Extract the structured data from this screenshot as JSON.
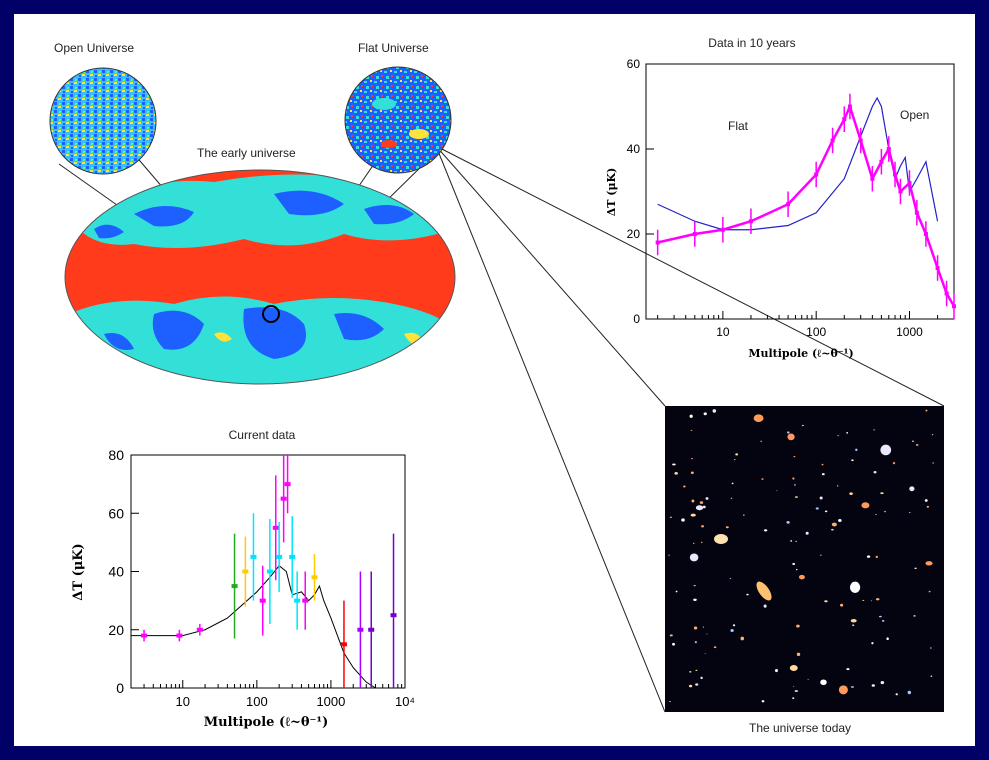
{
  "diagram": {
    "open_universe_label": "Open Universe",
    "flat_universe_label": "Flat Universe",
    "early_universe_label": "The early universe",
    "universe_today_label": "The universe today"
  },
  "colors": {
    "frame": "#000066",
    "map_red": "#ff3b1c",
    "map_cyan": "#33e0d8",
    "map_blue": "#1e60ff",
    "map_yellow": "#ffe23a",
    "magenta": "#ff00ff",
    "theory_blue": "#2222cc"
  },
  "chart_data": [
    {
      "type": "line",
      "title": "Data in 10 years",
      "xlabel": "Multipole (ℓ~θ⁻¹)",
      "ylabel": "ΔT (μK)",
      "x_scale": "log",
      "xlim": [
        1.5,
        3000
      ],
      "ylim": [
        0,
        60
      ],
      "xticks": [
        "10",
        "100",
        "1000"
      ],
      "yticks": [
        "0",
        "20",
        "40",
        "60"
      ],
      "annotations": [
        "Flat",
        "Open"
      ],
      "series": [
        {
          "name": "Flat",
          "x": [
            2,
            5,
            10,
            20,
            50,
            100,
            150,
            200,
            230,
            300,
            400,
            500,
            600,
            700,
            800,
            1000,
            1200,
            1500,
            2000,
            2500,
            3000
          ],
          "y": [
            18,
            20,
            21,
            23,
            27,
            34,
            42,
            47,
            50,
            42,
            33,
            37,
            40,
            34,
            30,
            32,
            25,
            20,
            12,
            6,
            3
          ]
        },
        {
          "name": "Open",
          "x": [
            2,
            5,
            10,
            20,
            50,
            100,
            200,
            300,
            400,
            450,
            500,
            600,
            700,
            800,
            900,
            1000,
            1200,
            1500,
            2000
          ],
          "y": [
            27,
            23,
            21,
            21,
            22,
            25,
            33,
            43,
            50,
            52,
            50,
            40,
            33,
            36,
            38,
            30,
            33,
            37,
            23
          ]
        }
      ]
    },
    {
      "type": "scatter",
      "title": "Current data",
      "xlabel": "Multipole (ℓ~θ⁻¹)",
      "ylabel": "ΔT (μK)",
      "x_scale": "log",
      "xlim": [
        2,
        10000
      ],
      "ylim": [
        0,
        80
      ],
      "xticks": [
        "10",
        "100",
        "1000",
        "10⁴"
      ],
      "yticks": [
        "0",
        "20",
        "40",
        "60",
        "80"
      ],
      "series": [
        {
          "name": "theory",
          "x": [
            2,
            5,
            10,
            20,
            40,
            60,
            100,
            150,
            200,
            250,
            300,
            400,
            500,
            600,
            700,
            800,
            1000,
            1500,
            2000,
            3000,
            4000
          ],
          "y": [
            18,
            18,
            18,
            20,
            24,
            28,
            33,
            38,
            42,
            40,
            32,
            33,
            30,
            32,
            35,
            30,
            24,
            12,
            7,
            2,
            0
          ]
        }
      ],
      "points": [
        {
          "x": 3,
          "y": 18,
          "err": 2,
          "color": "#ff00ff"
        },
        {
          "x": 9,
          "y": 18,
          "err": 2,
          "color": "#ff00ff"
        },
        {
          "x": 17,
          "y": 20,
          "err": 2,
          "color": "#ff00ff"
        },
        {
          "x": 50,
          "y": 35,
          "err": 18,
          "color": "#22aa22"
        },
        {
          "x": 70,
          "y": 40,
          "err": 12,
          "color": "#ffcc00"
        },
        {
          "x": 90,
          "y": 45,
          "err": 15,
          "color": "#00e5ff"
        },
        {
          "x": 120,
          "y": 30,
          "err": 12,
          "color": "#ff00ff"
        },
        {
          "x": 150,
          "y": 40,
          "err": 18,
          "color": "#00e5ff"
        },
        {
          "x": 180,
          "y": 55,
          "err": 18,
          "color": "#ff00ff"
        },
        {
          "x": 200,
          "y": 45,
          "err": 12,
          "color": "#00e5ff"
        },
        {
          "x": 230,
          "y": 65,
          "err": 15,
          "color": "#ff00ff"
        },
        {
          "x": 260,
          "y": 70,
          "err": 10,
          "color": "#ff00ff"
        },
        {
          "x": 300,
          "y": 45,
          "err": 14,
          "color": "#00e5ff"
        },
        {
          "x": 350,
          "y": 30,
          "err": 10,
          "color": "#00e5ff"
        },
        {
          "x": 450,
          "y": 30,
          "err": 10,
          "color": "#ff00ff"
        },
        {
          "x": 600,
          "y": 38,
          "err": 8,
          "color": "#ffcc00"
        },
        {
          "x": 1500,
          "y": 15,
          "err": 15,
          "color": "#ff0000"
        },
        {
          "x": 2500,
          "y": 20,
          "err": 20,
          "color": "#aa00ff"
        },
        {
          "x": 3500,
          "y": 20,
          "err": 20,
          "color": "#7700cc"
        },
        {
          "x": 7000,
          "y": 25,
          "err": 28,
          "color": "#7700cc"
        }
      ]
    }
  ]
}
